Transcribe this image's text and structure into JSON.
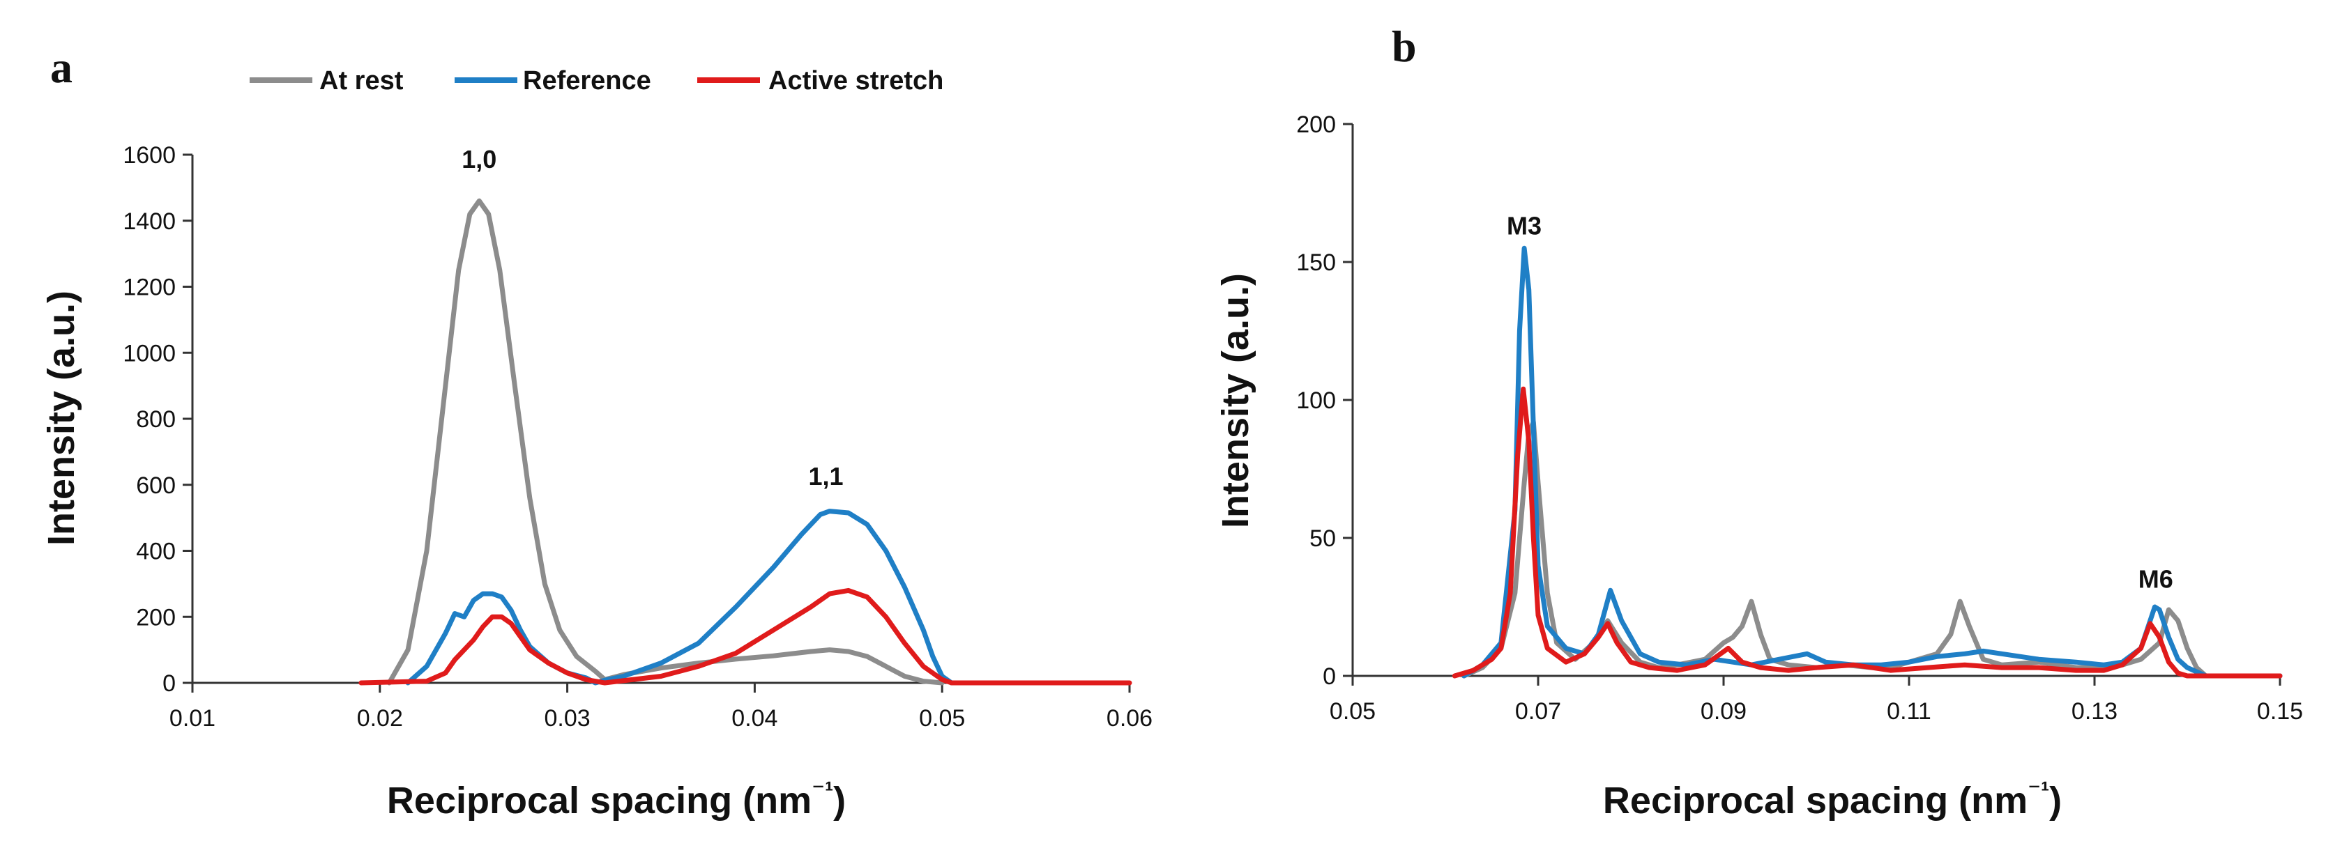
{
  "chart_data": [
    {
      "panel": "a",
      "type": "line",
      "xlabel": "Reciprocal spacing (nm⁻¹)",
      "ylabel": "Intensity (a.u.)",
      "xlim": [
        0.01,
        0.06
      ],
      "ylim": [
        0,
        1600
      ],
      "xticks": [
        0.01,
        0.02,
        0.03,
        0.04,
        0.05,
        0.06
      ],
      "xtick_labels": [
        "0.01",
        "0.02",
        "0.03",
        "0.04",
        "0.05",
        "0.06"
      ],
      "yticks": [
        0,
        200,
        400,
        600,
        800,
        1000,
        1200,
        1400,
        1600
      ],
      "ytick_labels": [
        "0",
        "200",
        "400",
        "600",
        "800",
        "1000",
        "1200",
        "1400",
        "1600"
      ],
      "legend": [
        "At rest",
        "Reference",
        "Active stretch"
      ],
      "annotations": [
        {
          "text": "1,0",
          "x": 0.0253,
          "y": 1560
        },
        {
          "text": "1,1",
          "x": 0.0438,
          "y": 600
        }
      ],
      "series": [
        {
          "name": "At rest",
          "color": "#8c8c8c",
          "points": [
            [
              0.0205,
              0
            ],
            [
              0.0215,
              100
            ],
            [
              0.0225,
              400
            ],
            [
              0.0235,
              900
            ],
            [
              0.0242,
              1250
            ],
            [
              0.0248,
              1420
            ],
            [
              0.0253,
              1460
            ],
            [
              0.0258,
              1420
            ],
            [
              0.0264,
              1250
            ],
            [
              0.0272,
              900
            ],
            [
              0.028,
              560
            ],
            [
              0.0288,
              300
            ],
            [
              0.0296,
              160
            ],
            [
              0.0305,
              80
            ],
            [
              0.0315,
              35
            ],
            [
              0.032,
              10
            ],
            [
              0.033,
              25
            ],
            [
              0.035,
              45
            ],
            [
              0.037,
              60
            ],
            [
              0.039,
              72
            ],
            [
              0.041,
              82
            ],
            [
              0.043,
              95
            ],
            [
              0.044,
              100
            ],
            [
              0.045,
              95
            ],
            [
              0.046,
              80
            ],
            [
              0.047,
              50
            ],
            [
              0.048,
              20
            ],
            [
              0.049,
              5
            ],
            [
              0.05,
              0
            ]
          ]
        },
        {
          "name": "Reference",
          "color": "#1f7fc6",
          "points": [
            [
              0.0215,
              0
            ],
            [
              0.0225,
              50
            ],
            [
              0.0235,
              150
            ],
            [
              0.024,
              210
            ],
            [
              0.0245,
              200
            ],
            [
              0.025,
              250
            ],
            [
              0.0255,
              270
            ],
            [
              0.026,
              270
            ],
            [
              0.0265,
              260
            ],
            [
              0.027,
              220
            ],
            [
              0.0275,
              160
            ],
            [
              0.028,
              110
            ],
            [
              0.029,
              60
            ],
            [
              0.03,
              30
            ],
            [
              0.031,
              15
            ],
            [
              0.0315,
              0
            ],
            [
              0.032,
              8
            ],
            [
              0.033,
              20
            ],
            [
              0.035,
              60
            ],
            [
              0.037,
              120
            ],
            [
              0.039,
              230
            ],
            [
              0.041,
              350
            ],
            [
              0.0425,
              450
            ],
            [
              0.0435,
              510
            ],
            [
              0.044,
              520
            ],
            [
              0.045,
              515
            ],
            [
              0.046,
              480
            ],
            [
              0.047,
              400
            ],
            [
              0.048,
              290
            ],
            [
              0.049,
              160
            ],
            [
              0.0495,
              80
            ],
            [
              0.05,
              20
            ],
            [
              0.0505,
              0
            ]
          ]
        },
        {
          "name": "Active stretch",
          "color": "#e01b1b",
          "points": [
            [
              0.019,
              0
            ],
            [
              0.0225,
              5
            ],
            [
              0.0235,
              30
            ],
            [
              0.024,
              70
            ],
            [
              0.025,
              130
            ],
            [
              0.0255,
              170
            ],
            [
              0.026,
              200
            ],
            [
              0.0265,
              200
            ],
            [
              0.027,
              180
            ],
            [
              0.0275,
              140
            ],
            [
              0.028,
              100
            ],
            [
              0.029,
              60
            ],
            [
              0.03,
              30
            ],
            [
              0.031,
              10
            ],
            [
              0.032,
              0
            ],
            [
              0.035,
              20
            ],
            [
              0.037,
              50
            ],
            [
              0.039,
              90
            ],
            [
              0.041,
              160
            ],
            [
              0.043,
              230
            ],
            [
              0.044,
              270
            ],
            [
              0.045,
              280
            ],
            [
              0.046,
              260
            ],
            [
              0.047,
              200
            ],
            [
              0.048,
              120
            ],
            [
              0.049,
              50
            ],
            [
              0.05,
              10
            ],
            [
              0.0505,
              0
            ],
            [
              0.06,
              0
            ]
          ]
        }
      ]
    },
    {
      "panel": "b",
      "type": "line",
      "xlabel": "Reciprocal spacing (nm⁻¹)",
      "ylabel": "Intensity (a.u.)",
      "xlim": [
        0.05,
        0.15
      ],
      "ylim": [
        0,
        200
      ],
      "xticks": [
        0.05,
        0.07,
        0.09,
        0.11,
        0.13,
        0.15
      ],
      "xtick_labels": [
        "0.05",
        "0.07",
        "0.09",
        "0.11",
        "0.13",
        "0.15"
      ],
      "yticks": [
        0,
        50,
        100,
        150,
        200
      ],
      "ytick_labels": [
        "0",
        "50",
        "100",
        "150",
        "200"
      ],
      "annotations": [
        {
          "text": "M3",
          "x": 0.0685,
          "y": 160
        },
        {
          "text": "M6",
          "x": 0.1366,
          "y": 32
        }
      ],
      "series": [
        {
          "name": "At rest",
          "color": "#8c8c8c",
          "points": [
            [
              0.062,
              0
            ],
            [
              0.064,
              3
            ],
            [
              0.066,
              10
            ],
            [
              0.0675,
              30
            ],
            [
              0.0685,
              70
            ],
            [
              0.069,
              88
            ],
            [
              0.0695,
              92
            ],
            [
              0.07,
              70
            ],
            [
              0.071,
              30
            ],
            [
              0.072,
              12
            ],
            [
              0.074,
              6
            ],
            [
              0.076,
              12
            ],
            [
              0.0775,
              20
            ],
            [
              0.079,
              12
            ],
            [
              0.081,
              5
            ],
            [
              0.083,
              3
            ],
            [
              0.085,
              4
            ],
            [
              0.088,
              6
            ],
            [
              0.09,
              12
            ],
            [
              0.091,
              14
            ],
            [
              0.092,
              18
            ],
            [
              0.093,
              27
            ],
            [
              0.094,
              15
            ],
            [
              0.095,
              6
            ],
            [
              0.097,
              4
            ],
            [
              0.1,
              3
            ],
            [
              0.103,
              4
            ],
            [
              0.106,
              3
            ],
            [
              0.109,
              4
            ],
            [
              0.111,
              6
            ],
            [
              0.113,
              8
            ],
            [
              0.1145,
              15
            ],
            [
              0.1155,
              27
            ],
            [
              0.1165,
              18
            ],
            [
              0.118,
              6
            ],
            [
              0.12,
              4
            ],
            [
              0.124,
              5
            ],
            [
              0.128,
              3
            ],
            [
              0.131,
              3
            ],
            [
              0.133,
              4
            ],
            [
              0.135,
              6
            ],
            [
              0.137,
              12
            ],
            [
              0.138,
              24
            ],
            [
              0.139,
              20
            ],
            [
              0.14,
              10
            ],
            [
              0.141,
              3
            ],
            [
              0.142,
              0
            ],
            [
              0.145,
              0
            ],
            [
              0.15,
              0
            ]
          ]
        },
        {
          "name": "Reference",
          "color": "#1f7fc6",
          "points": [
            [
              0.062,
              0
            ],
            [
              0.064,
              4
            ],
            [
              0.066,
              12
            ],
            [
              0.0675,
              60
            ],
            [
              0.068,
              125
            ],
            [
              0.0685,
              155
            ],
            [
              0.069,
              140
            ],
            [
              0.0695,
              90
            ],
            [
              0.07,
              40
            ],
            [
              0.071,
              18
            ],
            [
              0.073,
              10
            ],
            [
              0.075,
              8
            ],
            [
              0.0765,
              15
            ],
            [
              0.0778,
              31
            ],
            [
              0.079,
              20
            ],
            [
              0.081,
              8
            ],
            [
              0.083,
              5
            ],
            [
              0.086,
              4
            ],
            [
              0.089,
              6
            ],
            [
              0.091,
              5
            ],
            [
              0.093,
              4
            ],
            [
              0.096,
              6
            ],
            [
              0.099,
              8
            ],
            [
              0.101,
              5
            ],
            [
              0.104,
              4
            ],
            [
              0.107,
              4
            ],
            [
              0.11,
              5
            ],
            [
              0.113,
              7
            ],
            [
              0.116,
              8
            ],
            [
              0.118,
              9
            ],
            [
              0.12,
              8
            ],
            [
              0.124,
              6
            ],
            [
              0.128,
              5
            ],
            [
              0.131,
              4
            ],
            [
              0.133,
              5
            ],
            [
              0.135,
              10
            ],
            [
              0.136,
              20
            ],
            [
              0.1365,
              25
            ],
            [
              0.137,
              24
            ],
            [
              0.138,
              14
            ],
            [
              0.139,
              6
            ],
            [
              0.14,
              3
            ],
            [
              0.142,
              0
            ],
            [
              0.144,
              0
            ],
            [
              0.15,
              0
            ]
          ]
        },
        {
          "name": "Active stretch",
          "color": "#e01b1b",
          "points": [
            [
              0.061,
              0
            ],
            [
              0.063,
              2
            ],
            [
              0.065,
              6
            ],
            [
              0.066,
              10
            ],
            [
              0.067,
              30
            ],
            [
              0.0678,
              80
            ],
            [
              0.0684,
              104
            ],
            [
              0.069,
              85
            ],
            [
              0.0695,
              50
            ],
            [
              0.07,
              22
            ],
            [
              0.071,
              10
            ],
            [
              0.073,
              5
            ],
            [
              0.075,
              8
            ],
            [
              0.0765,
              14
            ],
            [
              0.0775,
              19
            ],
            [
              0.0785,
              12
            ],
            [
              0.08,
              5
            ],
            [
              0.082,
              3
            ],
            [
              0.085,
              2
            ],
            [
              0.088,
              4
            ],
            [
              0.0905,
              10
            ],
            [
              0.092,
              5
            ],
            [
              0.094,
              3
            ],
            [
              0.097,
              2
            ],
            [
              0.1,
              3
            ],
            [
              0.104,
              4
            ],
            [
              0.108,
              2
            ],
            [
              0.112,
              3
            ],
            [
              0.116,
              4
            ],
            [
              0.12,
              3
            ],
            [
              0.124,
              3
            ],
            [
              0.128,
              2
            ],
            [
              0.131,
              2
            ],
            [
              0.133,
              4
            ],
            [
              0.135,
              10
            ],
            [
              0.136,
              19
            ],
            [
              0.137,
              14
            ],
            [
              0.138,
              5
            ],
            [
              0.139,
              1
            ],
            [
              0.14,
              0
            ],
            [
              0.15,
              0
            ]
          ]
        }
      ]
    }
  ]
}
